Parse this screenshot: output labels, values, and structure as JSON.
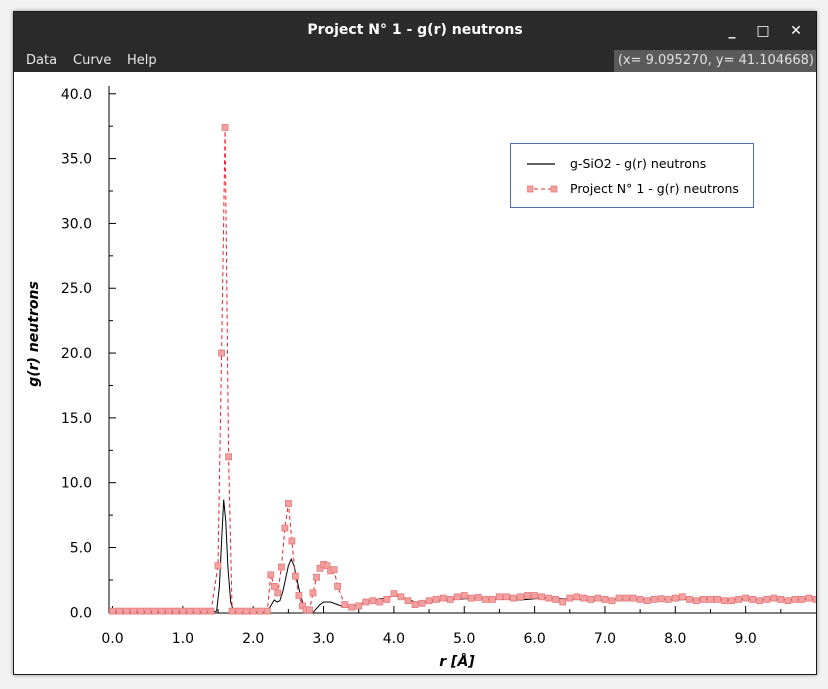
{
  "window": {
    "title": "Project N° 1 - g(r) neutrons",
    "controls": [
      "_",
      "□",
      "✕"
    ]
  },
  "menubar": {
    "items": [
      "Data",
      "Curve",
      "Help"
    ],
    "cursor_readout": "(x= 9.095270, y= 41.104668)"
  },
  "colors": {
    "series_reference": "#000000",
    "series_project": "#e8242d",
    "marker_fill": "#f4a0a0",
    "legend_border": "#4a6fb0"
  },
  "chart_data": {
    "type": "line",
    "xlabel": "r [Å]",
    "ylabel": "g(r) neutrons",
    "xlim": [
      -0.05,
      10.0
    ],
    "ylim": [
      -0.05,
      40.6
    ],
    "x_ticks": [
      "0.0",
      "1.0",
      "2.0",
      "3.0",
      "4.0",
      "5.0",
      "6.0",
      "7.0",
      "8.0",
      "9.0"
    ],
    "y_ticks": [
      "0.0",
      "5.0",
      "10.0",
      "15.0",
      "20.0",
      "25.0",
      "30.0",
      "35.0",
      "40.0"
    ],
    "legend_position": "top-right",
    "series": [
      {
        "name": "g-SiO2 - g(r) neutrons",
        "style": "solid",
        "x": [
          0,
          0.5,
          1.0,
          1.4,
          1.48,
          1.52,
          1.55,
          1.58,
          1.61,
          1.64,
          1.68,
          1.72,
          1.8,
          2.0,
          2.2,
          2.26,
          2.3,
          2.34,
          2.38,
          2.42,
          2.46,
          2.5,
          2.54,
          2.58,
          2.62,
          2.66,
          2.7,
          2.74,
          2.8,
          2.85,
          2.9,
          2.95,
          3.0,
          3.1,
          3.2,
          3.3,
          3.4,
          3.5,
          3.6,
          3.7,
          3.8,
          3.9,
          4.0,
          4.1,
          4.2,
          4.3,
          4.4,
          4.5,
          4.6,
          4.7,
          4.8,
          5.0,
          5.2,
          5.4,
          5.6,
          5.8,
          6.0,
          6.2,
          6.4,
          6.6,
          6.8,
          7.0,
          7.2,
          7.4,
          7.6,
          7.8,
          8.0,
          8.2,
          8.4,
          8.6,
          8.8,
          9.0,
          9.2,
          9.4,
          9.6,
          9.8,
          10.0
        ],
        "values": [
          0,
          0,
          0,
          0,
          0.1,
          2.0,
          5.5,
          8.7,
          7.0,
          3.5,
          0.8,
          0.1,
          0,
          0,
          0.05,
          0.6,
          0.95,
          0.8,
          0.9,
          1.6,
          2.6,
          3.6,
          4.1,
          3.6,
          2.6,
          1.6,
          0.8,
          0.2,
          0,
          0,
          0.3,
          0.6,
          0.8,
          0.8,
          0.6,
          0.4,
          0.45,
          0.6,
          0.8,
          0.95,
          1.05,
          1.1,
          1.3,
          1.2,
          1.0,
          0.8,
          0.75,
          0.8,
          0.85,
          0.9,
          0.95,
          1.05,
          1.05,
          1.0,
          1.0,
          0.95,
          1.05,
          1.1,
          1.05,
          1.0,
          0.9,
          0.95,
          1.0,
          1.0,
          1.05,
          1.0,
          0.95,
          1.0,
          1.05,
          1.0,
          0.95,
          1.0,
          1.0,
          0.95,
          1.0,
          1.0,
          1.0
        ]
      },
      {
        "name": "Project N° 1 - g(r) neutrons",
        "style": "dashed-square-markers",
        "x": [
          0,
          0.1,
          0.2,
          0.3,
          0.4,
          0.5,
          0.6,
          0.7,
          0.8,
          0.9,
          1.0,
          1.1,
          1.2,
          1.3,
          1.4,
          1.5,
          1.55,
          1.6,
          1.65,
          1.7,
          1.8,
          1.9,
          2.0,
          2.1,
          2.2,
          2.25,
          2.3,
          2.35,
          2.4,
          2.45,
          2.5,
          2.55,
          2.6,
          2.65,
          2.7,
          2.75,
          2.8,
          2.85,
          2.9,
          2.95,
          3.0,
          3.05,
          3.1,
          3.15,
          3.2,
          3.3,
          3.4,
          3.5,
          3.6,
          3.7,
          3.8,
          3.9,
          4.0,
          4.1,
          4.2,
          4.3,
          4.4,
          4.5,
          4.6,
          4.7,
          4.8,
          4.9,
          5.0,
          5.1,
          5.2,
          5.3,
          5.4,
          5.5,
          5.6,
          5.7,
          5.8,
          5.9,
          6.0,
          6.1,
          6.2,
          6.3,
          6.4,
          6.5,
          6.6,
          6.7,
          6.8,
          6.9,
          7.0,
          7.1,
          7.2,
          7.3,
          7.4,
          7.5,
          7.6,
          7.7,
          7.8,
          7.9,
          8.0,
          8.1,
          8.2,
          8.3,
          8.4,
          8.5,
          8.6,
          8.7,
          8.8,
          8.9,
          9.0,
          9.1,
          9.2,
          9.3,
          9.4,
          9.5,
          9.6,
          9.7,
          9.8,
          9.9,
          10.0
        ],
        "values": [
          0.1,
          0.1,
          0.1,
          0.1,
          0.1,
          0.1,
          0.1,
          0.1,
          0.1,
          0.1,
          0.1,
          0.1,
          0.1,
          0.1,
          0.1,
          3.6,
          20.0,
          37.4,
          12.0,
          0.1,
          0.1,
          0.1,
          0.1,
          0.1,
          0.1,
          2.9,
          2.0,
          1.5,
          3.5,
          6.5,
          8.4,
          5.5,
          2.8,
          1.3,
          0.5,
          0.2,
          0.2,
          1.5,
          2.7,
          3.4,
          3.7,
          3.6,
          3.2,
          3.3,
          2.0,
          0.6,
          0.4,
          0.5,
          0.8,
          0.9,
          0.8,
          1.0,
          1.45,
          1.2,
          0.9,
          0.6,
          0.7,
          0.9,
          1.0,
          1.1,
          1.0,
          1.2,
          1.3,
          1.1,
          1.15,
          1.0,
          1.0,
          1.2,
          1.2,
          1.1,
          1.2,
          1.3,
          1.3,
          1.2,
          1.1,
          1.0,
          0.8,
          1.1,
          1.2,
          1.1,
          1.0,
          1.1,
          1.0,
          0.9,
          1.1,
          1.1,
          1.1,
          1.0,
          0.9,
          1.0,
          1.05,
          1.0,
          1.1,
          1.2,
          1.0,
          0.9,
          1.0,
          1.0,
          1.0,
          0.9,
          0.9,
          1.0,
          1.1,
          1.0,
          0.9,
          1.0,
          1.1,
          1.0,
          0.9,
          1.0,
          1.0,
          1.1,
          1.0
        ]
      }
    ]
  }
}
